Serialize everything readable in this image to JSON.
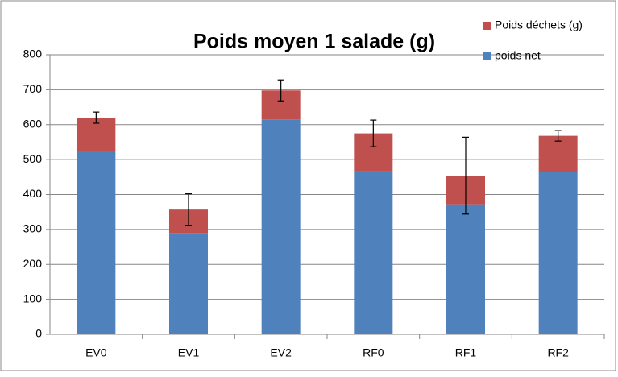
{
  "chart_data": {
    "type": "stacked_bar",
    "title": "Poids moyen 1 salade (g)",
    "categories": [
      "EV0",
      "EV1",
      "EV2",
      "RF0",
      "RF1",
      "RF2"
    ],
    "series": [
      {
        "name": "poids net",
        "color": "#4f81bd",
        "values": [
          525,
          290,
          615,
          467,
          372,
          465
        ]
      },
      {
        "name": "Poids déchets (g)",
        "color": "#c0504d",
        "values": [
          95,
          67,
          83,
          108,
          82,
          103
        ],
        "errors": [
          16,
          45,
          30,
          38,
          110,
          15
        ]
      }
    ],
    "ylim": [
      0,
      800
    ],
    "yticks": [
      0,
      100,
      200,
      300,
      400,
      500,
      600,
      700,
      800
    ],
    "grid": true,
    "legend": "top-right"
  }
}
